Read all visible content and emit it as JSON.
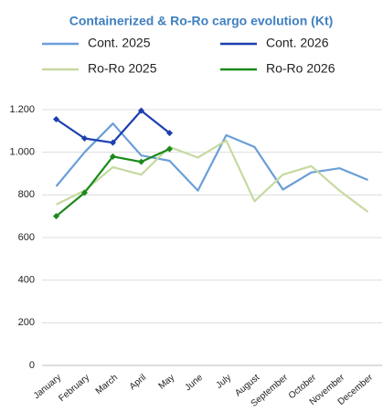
{
  "chart_data": {
    "type": "line",
    "title": "Containerized & Ro-Ro cargo evolution (Kt)",
    "categories": [
      "January",
      "February",
      "March",
      "April",
      "May",
      "June",
      "July",
      "August",
      "September",
      "October",
      "November",
      "December"
    ],
    "series": [
      {
        "name": "Cont. 2025",
        "color": "#6a9fd8",
        "values": [
          840,
          1000,
          1135,
          985,
          960,
          820,
          1080,
          1025,
          825,
          905,
          925,
          870
        ]
      },
      {
        "name": "Cont. 2026",
        "color": "#1c3fb0",
        "marker": "diamond",
        "values": [
          1155,
          1065,
          1045,
          1195,
          1090,
          null,
          null,
          null,
          null,
          null,
          null,
          null
        ]
      },
      {
        "name": "Ro-Ro 2025",
        "color": "#c6d9a0",
        "values": [
          755,
          820,
          930,
          895,
          1025,
          975,
          1055,
          770,
          895,
          935,
          820,
          720
        ]
      },
      {
        "name": "Ro-Ro 2026",
        "color": "#1a8a1a",
        "marker": "diamond",
        "values": [
          700,
          810,
          980,
          955,
          1015,
          null,
          null,
          null,
          null,
          null,
          null,
          null
        ]
      }
    ],
    "ylim": [
      0,
      1200
    ],
    "yticks": [
      0,
      200,
      400,
      600,
      800,
      {
        "value": 1000,
        "label": "1.000"
      },
      {
        "value": 1200,
        "label": "1.200"
      }
    ],
    "grid": true
  }
}
